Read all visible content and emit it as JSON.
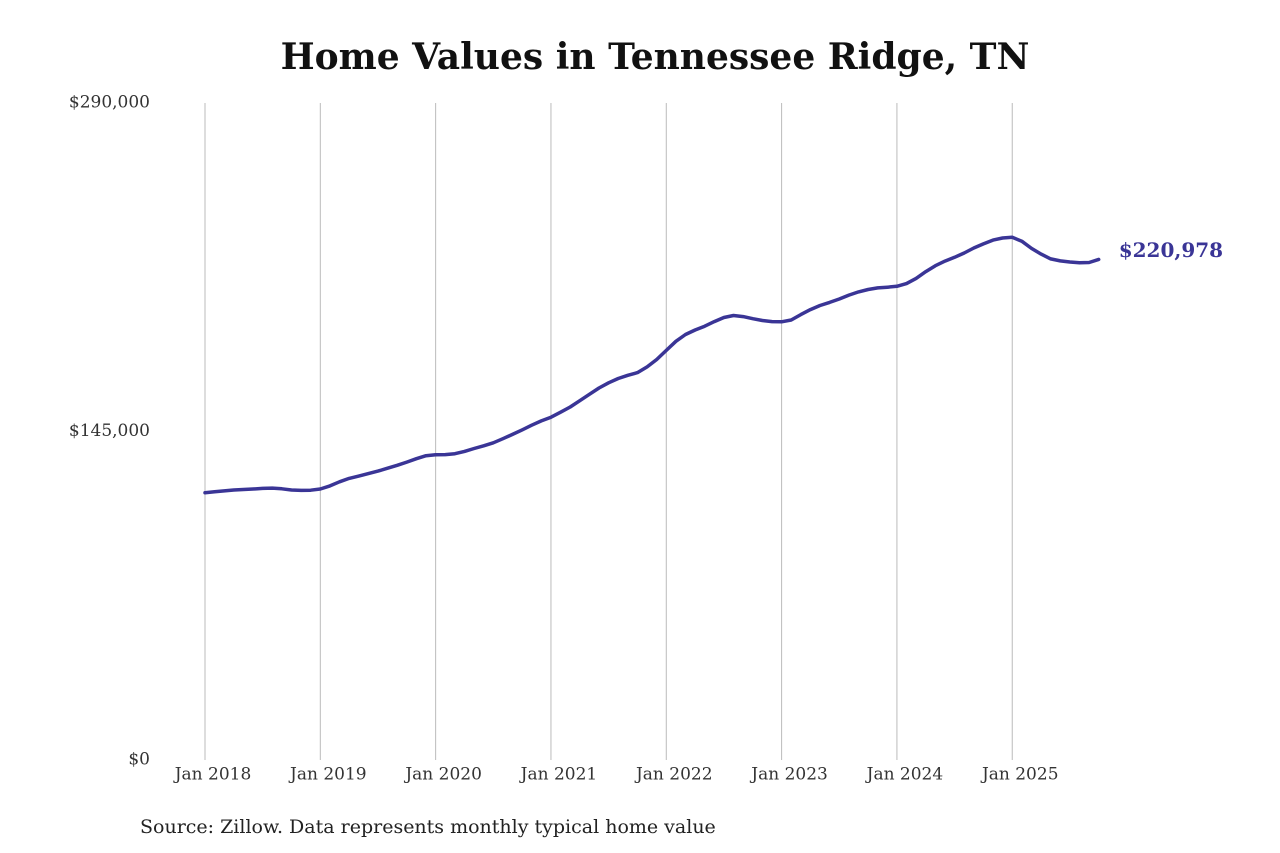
{
  "chart_data": {
    "type": "line",
    "title": "Home Values in Tennessee Ridge, TN",
    "source": "Source: Zillow. Data represents monthly typical home value",
    "x": [
      "2018-01",
      "2018-02",
      "2018-03",
      "2018-04",
      "2018-05",
      "2018-06",
      "2018-07",
      "2018-08",
      "2018-09",
      "2018-10",
      "2018-11",
      "2018-12",
      "2019-01",
      "2019-02",
      "2019-03",
      "2019-04",
      "2019-05",
      "2019-06",
      "2019-07",
      "2019-08",
      "2019-09",
      "2019-10",
      "2019-11",
      "2019-12",
      "2020-01",
      "2020-02",
      "2020-03",
      "2020-04",
      "2020-05",
      "2020-06",
      "2020-07",
      "2020-08",
      "2020-09",
      "2020-10",
      "2020-11",
      "2020-12",
      "2021-01",
      "2021-02",
      "2021-03",
      "2021-04",
      "2021-05",
      "2021-06",
      "2021-07",
      "2021-08",
      "2021-09",
      "2021-10",
      "2021-11",
      "2021-12",
      "2022-01",
      "2022-02",
      "2022-03",
      "2022-04",
      "2022-05",
      "2022-06",
      "2022-07",
      "2022-08",
      "2022-09",
      "2022-10",
      "2022-11",
      "2022-12",
      "2023-01",
      "2023-02",
      "2023-03",
      "2023-04",
      "2023-05",
      "2023-06",
      "2023-07",
      "2023-08",
      "2023-09",
      "2023-10",
      "2023-11",
      "2023-12",
      "2024-01",
      "2024-02",
      "2024-03",
      "2024-04",
      "2024-05",
      "2024-06",
      "2024-07",
      "2024-08",
      "2024-09",
      "2024-10",
      "2024-11",
      "2024-12",
      "2025-01",
      "2025-02",
      "2025-03",
      "2025-04",
      "2025-05",
      "2025-06",
      "2025-07",
      "2025-08",
      "2025-09",
      "2025-10"
    ],
    "series": [
      {
        "name": "Home value",
        "color": "#3a3596",
        "values": [
          118000,
          118400,
          118800,
          119200,
          119400,
          119600,
          119900,
          120000,
          119700,
          119200,
          119000,
          119100,
          119600,
          121000,
          122800,
          124300,
          125300,
          126400,
          127500,
          128800,
          130100,
          131500,
          133000,
          134300,
          134700,
          134800,
          135200,
          136200,
          137500,
          138700,
          140000,
          141800,
          143700,
          145700,
          147800,
          149700,
          151300,
          153500,
          155800,
          158600,
          161400,
          164200,
          166500,
          168400,
          169800,
          171000,
          173500,
          176800,
          180800,
          184800,
          187800,
          189800,
          191500,
          193500,
          195300,
          196200,
          195700,
          194800,
          194000,
          193500,
          193400,
          194200,
          196600,
          198800,
          200600,
          202000,
          203500,
          205200,
          206600,
          207700,
          208400,
          208700,
          209100,
          210300,
          212600,
          215600,
          218200,
          220200,
          221900,
          223800,
          226000,
          227800,
          229500,
          230400,
          230700,
          229000,
          225800,
          223300,
          221200,
          220300,
          219800,
          219500,
          219600,
          220978
        ],
        "value_labels": [
          null,
          null,
          null,
          null,
          null,
          null,
          null,
          null,
          null,
          null,
          null,
          null,
          null,
          null,
          null,
          null,
          null,
          null,
          null,
          null,
          null,
          null,
          null,
          null,
          null,
          null,
          null,
          null,
          null,
          null,
          null,
          null,
          null,
          null,
          null,
          null,
          null,
          null,
          null,
          null,
          null,
          null,
          null,
          null,
          null,
          null,
          null,
          null,
          null,
          null,
          null,
          null,
          null,
          null,
          null,
          null,
          null,
          null,
          null,
          null,
          null,
          null,
          null,
          null,
          null,
          null,
          null,
          null,
          null,
          null,
          null,
          null,
          null,
          null,
          null,
          null,
          null,
          null,
          null,
          null,
          null,
          null,
          null,
          null,
          null,
          null,
          null,
          null,
          null,
          null,
          null,
          null,
          null,
          "$220,978"
        ]
      }
    ],
    "xticks": [
      {
        "value": "2018-01",
        "label": "Jan 2018"
      },
      {
        "value": "2019-01",
        "label": "Jan 2019"
      },
      {
        "value": "2020-01",
        "label": "Jan 2020"
      },
      {
        "value": "2021-01",
        "label": "Jan 2021"
      },
      {
        "value": "2022-01",
        "label": "Jan 2022"
      },
      {
        "value": "2023-01",
        "label": "Jan 2023"
      },
      {
        "value": "2024-01",
        "label": "Jan 2024"
      },
      {
        "value": "2025-01",
        "label": "Jan 2025"
      }
    ],
    "ylim": [
      0,
      290000
    ],
    "yticks": [
      {
        "value": 0,
        "label": "$0"
      },
      {
        "value": 145000,
        "label": "$145,000"
      },
      {
        "value": 290000,
        "label": "$290,000"
      }
    ],
    "grid": "x"
  }
}
